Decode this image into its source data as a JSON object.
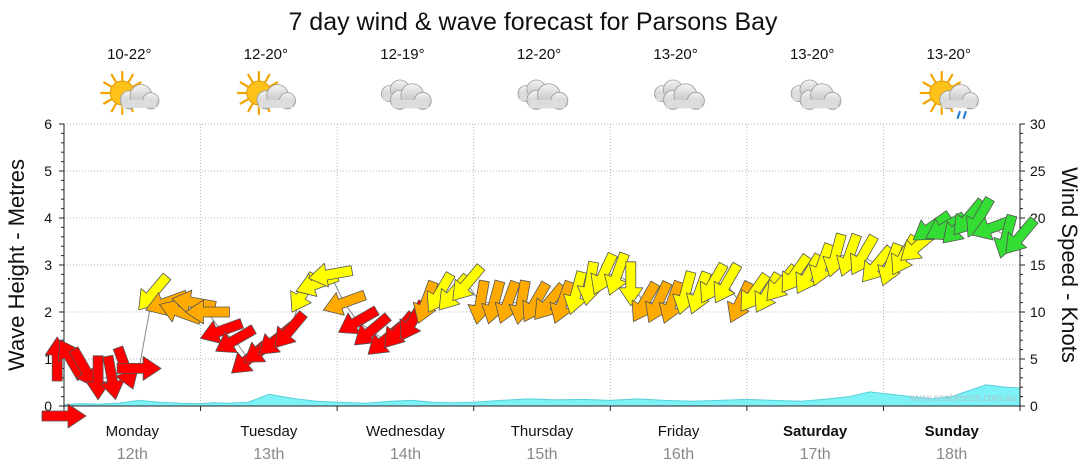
{
  "chart_data": {
    "type": "line",
    "title": "7 day wind & wave forecast for Parsons Bay",
    "y_left_label": "Wave Height - Metres",
    "y_right_label": "Wind Speed - Knots",
    "y_left_ticks": [
      "0",
      "1",
      "2",
      "3",
      "4",
      "5",
      "6"
    ],
    "y_right_ticks": [
      "0",
      "5",
      "10",
      "15",
      "20",
      "25",
      "30"
    ],
    "y_left_range": [
      0,
      6
    ],
    "y_right_range": [
      0,
      30
    ],
    "watermark": "www.seabreeze.com.au",
    "days": [
      {
        "name": "Monday",
        "date": "12th",
        "temp": "10-22°",
        "icon": "sun-cloud-icon",
        "weekend": false
      },
      {
        "name": "Tuesday",
        "date": "13th",
        "temp": "12-20°",
        "icon": "sun-cloud-icon",
        "weekend": false
      },
      {
        "name": "Wednesday",
        "date": "14th",
        "temp": "12-19°",
        "icon": "cloud-icon",
        "weekend": false
      },
      {
        "name": "Thursday",
        "date": "15th",
        "temp": "12-20°",
        "icon": "cloud-icon",
        "weekend": false
      },
      {
        "name": "Friday",
        "date": "16th",
        "temp": "13-20°",
        "icon": "cloud-icon",
        "weekend": false
      },
      {
        "name": "Saturday",
        "date": "17th",
        "temp": "13-20°",
        "icon": "cloud-icon",
        "weekend": true
      },
      {
        "name": "Sunday",
        "date": "18th",
        "temp": "13-20°",
        "icon": "sun-cloud-rain-icon",
        "weekend": true
      }
    ],
    "wave_series": {
      "name": "Wave Height",
      "units": "m",
      "color": "#66f0f6",
      "x_day": [
        0,
        0.1,
        0.25,
        0.4,
        0.55,
        0.7,
        0.85,
        1.0,
        1.1,
        1.2,
        1.35,
        1.5,
        1.6,
        1.7,
        1.85,
        2.0,
        2.2,
        2.4,
        2.55,
        2.7,
        2.85,
        3.0,
        3.2,
        3.4,
        3.6,
        3.8,
        4.0,
        4.2,
        4.4,
        4.6,
        4.8,
        5.0,
        5.2,
        5.4,
        5.6,
        5.75,
        5.9,
        6.05,
        6.2,
        6.35,
        6.5,
        6.6,
        6.75,
        6.9,
        7.0
      ],
      "values": [
        0.02,
        0.05,
        0.04,
        0.06,
        0.12,
        0.08,
        0.06,
        0.05,
        0.07,
        0.06,
        0.08,
        0.25,
        0.2,
        0.15,
        0.1,
        0.08,
        0.06,
        0.1,
        0.12,
        0.08,
        0.07,
        0.08,
        0.12,
        0.15,
        0.13,
        0.14,
        0.12,
        0.15,
        0.12,
        0.1,
        0.12,
        0.14,
        0.12,
        0.1,
        0.15,
        0.2,
        0.3,
        0.25,
        0.2,
        0.15,
        0.2,
        0.3,
        0.45,
        0.4,
        0.38
      ]
    },
    "wind_series": {
      "name": "Wind Speed",
      "units": "knots",
      "color_scale": {
        "lt10": "#ff0000",
        "10to12": "#ffaa00",
        "12to18": "#ffff00",
        "gte18": "#33dd33"
      },
      "x_day": [
        -0.05,
        0.05,
        0.15,
        0.25,
        0.35,
        0.45,
        0.55,
        0.65,
        0.75,
        0.85,
        0.95,
        1.05,
        1.15,
        1.25,
        1.35,
        1.45,
        1.55,
        1.65,
        1.75,
        1.85,
        1.95,
        2.05,
        2.15,
        2.25,
        2.35,
        2.45,
        2.55,
        2.65,
        2.75,
        2.85,
        2.95,
        3.05,
        3.15,
        3.25,
        3.35,
        3.45,
        3.55,
        3.65,
        3.75,
        3.85,
        3.95,
        4.05,
        4.15,
        4.25,
        4.35,
        4.45,
        4.55,
        4.65,
        4.75,
        4.85,
        4.95,
        5.05,
        5.15,
        5.25,
        5.35,
        5.45,
        5.55,
        5.65,
        5.75,
        5.85,
        5.95,
        6.05,
        6.15,
        6.25,
        6.35,
        6.45,
        6.55,
        6.62,
        6.7,
        6.8,
        6.9,
        7.0
      ],
      "values": [
        5,
        5,
        4,
        3,
        3,
        4,
        4,
        12,
        11,
        10,
        11,
        10,
        8,
        7,
        5,
        6,
        7,
        8,
        12,
        13,
        14,
        11,
        9,
        8,
        7,
        8,
        9,
        11,
        12,
        12,
        13,
        11,
        11,
        11,
        11,
        11,
        11,
        11,
        12,
        13,
        14,
        14,
        13,
        11,
        11,
        11,
        12,
        12,
        13,
        13,
        11,
        12,
        12,
        13,
        14,
        14,
        15,
        16,
        16,
        16,
        15,
        15,
        16,
        17,
        19,
        19,
        19,
        20,
        20,
        19,
        18,
        18
      ],
      "direction_deg": [
        90,
        120,
        300,
        270,
        280,
        290,
        0,
        230,
        200,
        160,
        170,
        180,
        200,
        210,
        220,
        215,
        220,
        230,
        240,
        200,
        190,
        200,
        210,
        220,
        220,
        230,
        240,
        250,
        240,
        230,
        230,
        260,
        255,
        250,
        260,
        240,
        230,
        250,
        255,
        260,
        245,
        250,
        270,
        240,
        245,
        250,
        255,
        250,
        240,
        240,
        245,
        235,
        240,
        230,
        235,
        240,
        250,
        255,
        250,
        240,
        230,
        250,
        240,
        220,
        215,
        210,
        225,
        230,
        240,
        200,
        255,
        230
      ]
    }
  }
}
